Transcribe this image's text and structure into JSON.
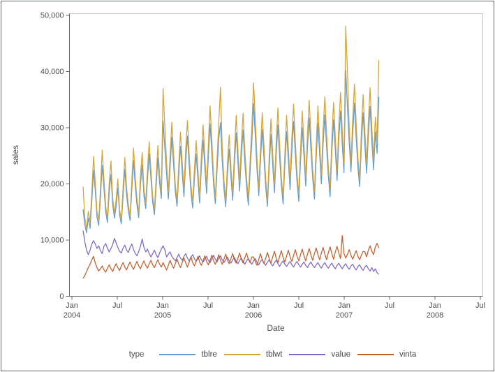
{
  "colors": {
    "axis_line": "#696969",
    "wall_border": "#c9c9c9",
    "tick_text": "#4d4d4d",
    "figure_border": "#5c666f",
    "background": "#ffffff"
  },
  "chart_data": {
    "type": "line",
    "xlabel": "Date",
    "ylabel": "sales",
    "legend_title": "type",
    "legend_position": "bottom",
    "grid": false,
    "ylim": [
      0,
      50000
    ],
    "y_ticks": [
      {
        "value": 0,
        "label": "0"
      },
      {
        "value": 10000,
        "label": "10,000"
      },
      {
        "value": 20000,
        "label": "20,000"
      },
      {
        "value": 30000,
        "label": "30,000"
      },
      {
        "value": 40000,
        "label": "40,000"
      },
      {
        "value": 50000,
        "label": "50,000"
      }
    ],
    "x_ticks": [
      {
        "months_from_jan2004": 0,
        "month": "Jan",
        "year": "2004"
      },
      {
        "months_from_jan2004": 6,
        "month": "Jul",
        "year": ""
      },
      {
        "months_from_jan2004": 12,
        "month": "Jan",
        "year": "2005"
      },
      {
        "months_from_jan2004": 18,
        "month": "Jul",
        "year": ""
      },
      {
        "months_from_jan2004": 24,
        "month": "Jan",
        "year": "2006"
      },
      {
        "months_from_jan2004": 30,
        "month": "Jul",
        "year": ""
      },
      {
        "months_from_jan2004": 36,
        "month": "Jan",
        "year": "2007"
      },
      {
        "months_from_jan2004": 42,
        "month": "Jul",
        "year": ""
      },
      {
        "months_from_jan2004": 48,
        "month": "Jan",
        "year": "2008"
      },
      {
        "months_from_jan2004": 54,
        "month": "Jul",
        "year": ""
      }
    ],
    "x_start": "2004-02-15",
    "x_offset_days_from_jan2004": 45,
    "x_step_days": 7,
    "series": [
      {
        "name": "tblre",
        "color": "#5f9cd3",
        "values": [
          15500,
          12700,
          11300,
          13900,
          12100,
          16900,
          22400,
          18700,
          14100,
          12600,
          17600,
          23300,
          19200,
          15000,
          13100,
          18400,
          21700,
          16300,
          13900,
          16100,
          19300,
          14500,
          12900,
          17900,
          22600,
          18000,
          15200,
          13500,
          19000,
          24200,
          19500,
          16100,
          14000,
          19900,
          23400,
          17800,
          15600,
          20700,
          25400,
          20900,
          16700,
          14500,
          19600,
          24600,
          20100,
          17400,
          31200,
          26400,
          21700,
          17300,
          22800,
          28300,
          23500,
          18600,
          16000,
          21500,
          26700,
          22000,
          17700,
          24000,
          28500,
          23200,
          18500,
          15700,
          20900,
          25300,
          20800,
          16600,
          22800,
          27800,
          22900,
          18300,
          24600,
          30700,
          25500,
          19900,
          16500,
          22400,
          28000,
          30900,
          24100,
          19100,
          15900,
          21700,
          26200,
          21100,
          17100,
          23500,
          29100,
          23900,
          18700,
          24900,
          29600,
          23800,
          19400,
          16200,
          22100,
          27400,
          34300,
          28500,
          22300,
          17900,
          24100,
          29700,
          24500,
          19300,
          16000,
          22900,
          28800,
          23400,
          18400,
          25200,
          30500,
          24800,
          19700,
          16400,
          23300,
          29300,
          24200,
          19000,
          25900,
          31100,
          25300,
          20200,
          16900,
          23800,
          30000,
          24900,
          19600,
          26500,
          31700,
          26000,
          20900,
          17300,
          24600,
          30800,
          25100,
          20000,
          27100,
          32300,
          26500,
          21400,
          17700,
          25700,
          31400,
          25900,
          20600,
          27900,
          33000,
          27100,
          22000,
          40200,
          33500,
          27300,
          22200,
          28900,
          34400,
          28100,
          22800,
          19500,
          27000,
          32700,
          26900,
          21900,
          28500,
          33800,
          27500,
          22500,
          29200,
          25400,
          35500
        ]
      },
      {
        "name": "tblwt",
        "color": "#d4a43c",
        "values": [
          19500,
          14000,
          12000,
          15100,
          13200,
          18500,
          24900,
          20200,
          15100,
          13500,
          19300,
          26000,
          20900,
          16100,
          13900,
          20200,
          24100,
          17500,
          14700,
          17300,
          20900,
          15300,
          13700,
          19500,
          24700,
          19400,
          16300,
          14300,
          20700,
          26400,
          21100,
          17200,
          14900,
          21700,
          25600,
          19000,
          16700,
          22500,
          27500,
          22500,
          17800,
          15400,
          21300,
          26800,
          21700,
          18600,
          37000,
          30100,
          23900,
          18500,
          25000,
          31000,
          25500,
          19900,
          17000,
          23400,
          29200,
          23900,
          18900,
          26300,
          31300,
          25200,
          19800,
          16700,
          22700,
          27700,
          22600,
          17700,
          25000,
          30500,
          24900,
          19600,
          27000,
          33900,
          27900,
          21500,
          17600,
          24500,
          30800,
          37200,
          26400,
          20700,
          17000,
          23700,
          28700,
          22900,
          18300,
          25700,
          32200,
          26200,
          20200,
          27300,
          32600,
          26000,
          21000,
          17300,
          24100,
          30100,
          38000,
          31300,
          24300,
          19200,
          26300,
          32700,
          26800,
          20800,
          17100,
          25000,
          31600,
          25500,
          19800,
          27500,
          33500,
          27000,
          21200,
          17600,
          25400,
          32200,
          26400,
          20500,
          28300,
          34200,
          27600,
          21800,
          18200,
          26000,
          33000,
          27200,
          21100,
          29000,
          34900,
          28400,
          22500,
          18600,
          26900,
          33900,
          27400,
          21600,
          29700,
          35500,
          29000,
          23100,
          19100,
          28100,
          34500,
          28300,
          22200,
          30500,
          36300,
          29600,
          23700,
          48100,
          39900,
          30000,
          23900,
          31600,
          37800,
          30700,
          24600,
          21000,
          29500,
          35900,
          29400,
          23600,
          31100,
          37100,
          30000,
          24300,
          31900,
          27500,
          42000
        ]
      },
      {
        "name": "value",
        "color": "#7e68c4",
        "values": [
          11700,
          9700,
          8200,
          7400,
          8200,
          9300,
          9900,
          9300,
          8500,
          9000,
          8100,
          7600,
          8900,
          9400,
          8500,
          7900,
          8500,
          9200,
          10300,
          9500,
          8700,
          8000,
          7700,
          8600,
          9100,
          8200,
          7800,
          8700,
          9300,
          8300,
          7600,
          7200,
          8000,
          8900,
          10200,
          8700,
          7900,
          8400,
          7600,
          7000,
          7600,
          8200,
          7400,
          6900,
          7700,
          8400,
          9000,
          8300,
          7000,
          7500,
          7900,
          7100,
          6700,
          6300,
          6900,
          7500,
          6800,
          6400,
          7100,
          7600,
          6800,
          6300,
          7000,
          7400,
          6700,
          6200,
          6700,
          7200,
          6500,
          6100,
          6600,
          7100,
          6400,
          6000,
          6700,
          7300,
          6600,
          6100,
          6800,
          7200,
          6500,
          6000,
          6500,
          7000,
          6300,
          5900,
          6500,
          6900,
          6200,
          5800,
          6400,
          6800,
          6200,
          5700,
          6300,
          6700,
          6100,
          5700,
          6300,
          6700,
          6000,
          5600,
          6200,
          6600,
          5900,
          5500,
          6100,
          6500,
          5800,
          5400,
          6000,
          6400,
          5800,
          5300,
          5900,
          6300,
          5700,
          5300,
          5800,
          6200,
          5600,
          5200,
          5800,
          6200,
          5600,
          5200,
          5700,
          6100,
          5500,
          5100,
          5700,
          6100,
          5500,
          5100,
          5600,
          6000,
          5400,
          5000,
          5600,
          6000,
          5400,
          5000,
          5500,
          5900,
          5300,
          4900,
          5500,
          5900,
          5300,
          4900,
          5400,
          5800,
          5200,
          4800,
          5400,
          5700,
          5100,
          4700,
          5300,
          5600,
          5000,
          4600,
          5200,
          5500,
          4900,
          4500,
          5100,
          4400,
          4900,
          4200,
          3900
        ]
      },
      {
        "name": "vinta",
        "color": "#c35e2b",
        "values": [
          3200,
          3700,
          4400,
          5100,
          5700,
          6500,
          7100,
          5900,
          5100,
          4500,
          4900,
          5400,
          4700,
          4300,
          5000,
          5600,
          4900,
          4400,
          5200,
          5800,
          5100,
          4600,
          5400,
          6000,
          5200,
          4700,
          5500,
          6100,
          5300,
          4800,
          5600,
          6200,
          5400,
          4900,
          5700,
          6300,
          5500,
          5000,
          5800,
          6400,
          5600,
          5100,
          5900,
          6500,
          5700,
          5200,
          6000,
          5300,
          4700,
          5500,
          6400,
          5600,
          5000,
          5800,
          6600,
          5700,
          5100,
          6000,
          6800,
          5900,
          5200,
          6100,
          7000,
          6000,
          5400,
          6200,
          7100,
          6100,
          5500,
          6300,
          7200,
          6200,
          5600,
          6400,
          7300,
          6300,
          5700,
          6500,
          7400,
          6400,
          5700,
          6600,
          7500,
          6400,
          5800,
          6700,
          7600,
          6500,
          5900,
          6800,
          7700,
          6600,
          5900,
          6900,
          7700,
          6600,
          6000,
          7000,
          7000,
          6100,
          5500,
          6600,
          7600,
          6500,
          5800,
          6800,
          7800,
          6700,
          5900,
          7000,
          8000,
          6800,
          6000,
          7100,
          8100,
          6900,
          6100,
          7200,
          8200,
          7000,
          6200,
          7300,
          8300,
          7100,
          6300,
          7400,
          8400,
          7200,
          6300,
          7500,
          8500,
          7300,
          6400,
          7600,
          8600,
          7400,
          6500,
          7700,
          8700,
          7500,
          6500,
          7800,
          8800,
          7600,
          6600,
          7900,
          8900,
          7700,
          6700,
          10800,
          7600,
          6800,
          7500,
          8300,
          7300,
          6600,
          7400,
          8100,
          7100,
          6500,
          7300,
          8000,
          7900,
          7000,
          8200,
          9000,
          8000,
          7400,
          8800,
          9400,
          8600
        ]
      }
    ]
  }
}
